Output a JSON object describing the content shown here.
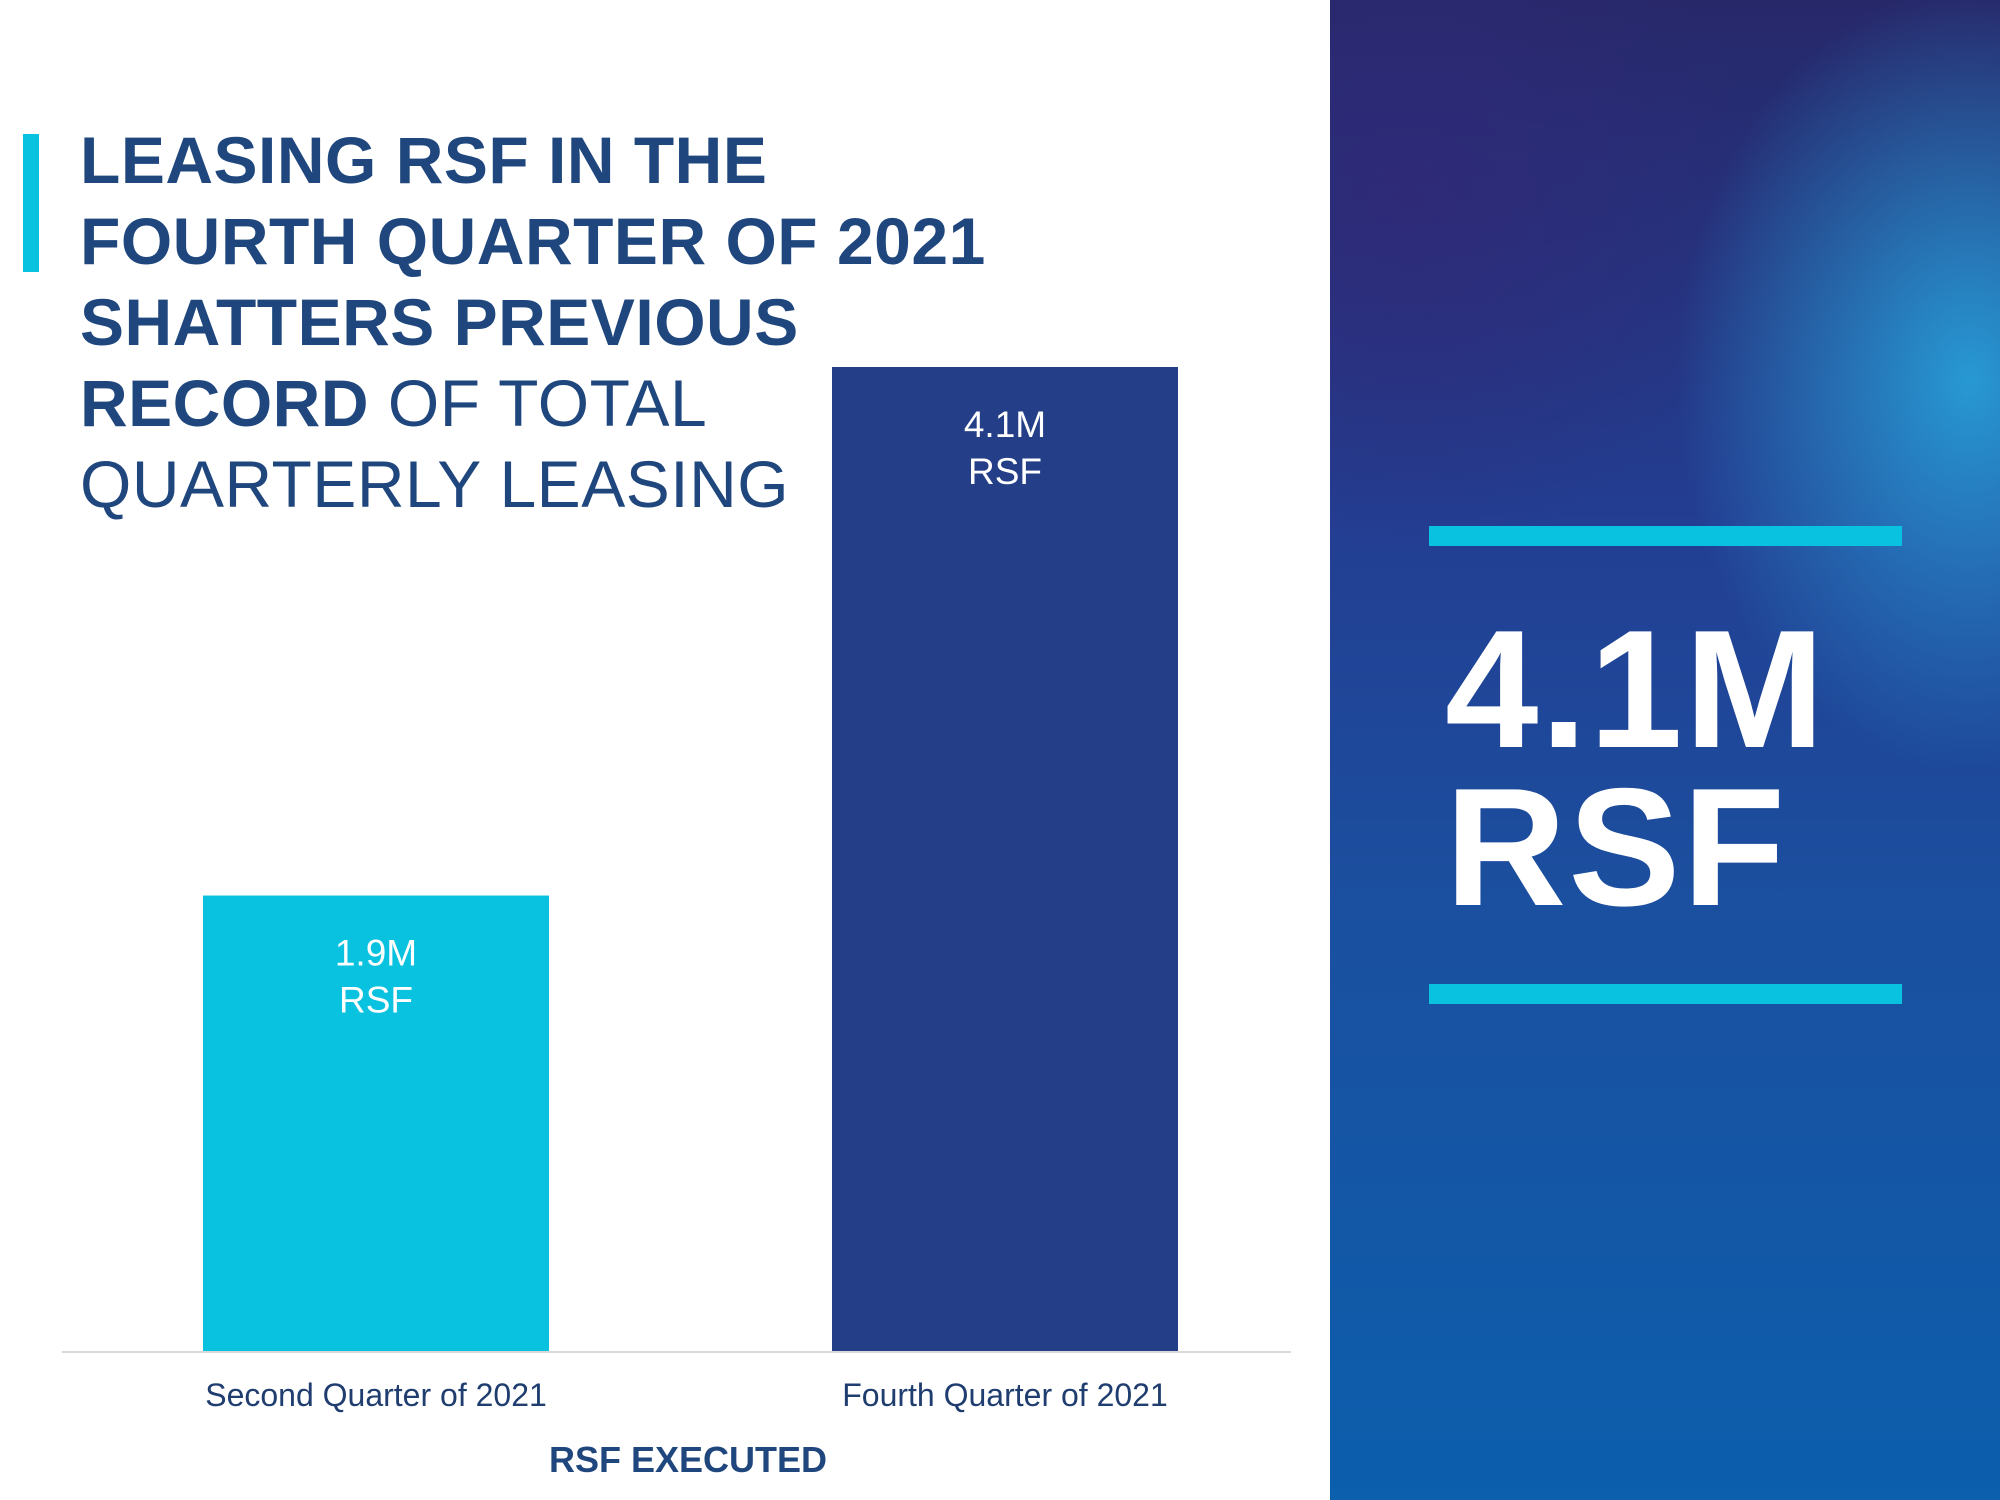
{
  "title": {
    "line1": "LEASING RSF IN THE",
    "line2": "FOURTH QUARTER OF 2021",
    "line3": "SHATTERS PREVIOUS",
    "line4_bold": "RECORD",
    "line4_rest": " OF TOTAL",
    "line5": "QUARTERLY LEASING"
  },
  "headline": {
    "value": "4.1M",
    "unit": "RSF"
  },
  "colors": {
    "accent": "#08c2df",
    "navy": "#243f88",
    "title_text": "#1f477e"
  },
  "chart_data": {
    "type": "bar",
    "title": "",
    "xlabel": "RSF EXECUTED",
    "ylabel": "",
    "ylim": [
      0,
      4.1
    ],
    "grid": false,
    "categories": [
      "Second Quarter of 2021",
      "Fourth Quarter of 2021"
    ],
    "values": [
      1.9,
      4.1
    ],
    "data_labels": [
      [
        "1.9M",
        "RSF"
      ],
      [
        "4.1M",
        "RSF"
      ]
    ],
    "bar_colors": [
      "#08c2df",
      "#243f88"
    ]
  }
}
